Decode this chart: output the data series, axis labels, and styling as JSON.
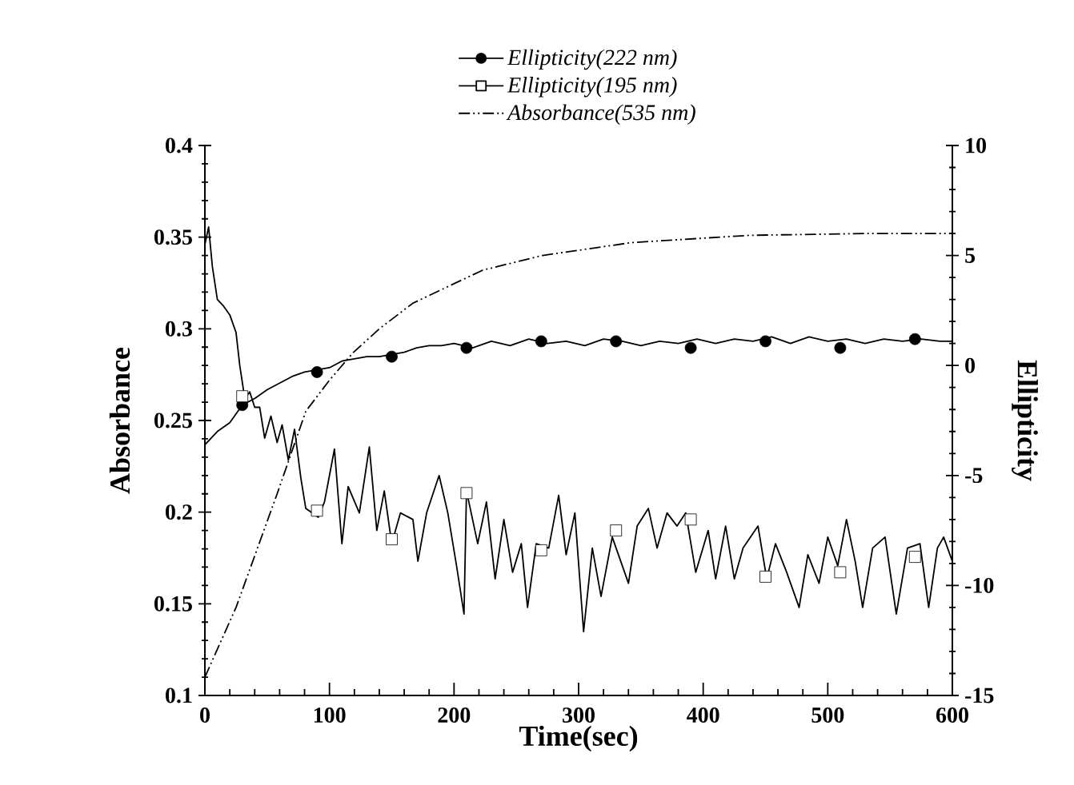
{
  "chart_data": {
    "type": "line",
    "xlabel": "Time(sec)",
    "ylabel": "Absorbance",
    "y2label": "Ellipticity",
    "xlim": [
      0,
      600
    ],
    "xticks": [
      0,
      100,
      200,
      300,
      400,
      500,
      600
    ],
    "ylim": [
      0.1,
      0.4
    ],
    "yticks": [
      0.1,
      0.15,
      0.2,
      0.25,
      0.3,
      0.35,
      0.4
    ],
    "y2lim": [
      -15,
      10
    ],
    "y2ticks": [
      -15,
      -10,
      -5,
      0,
      5,
      10
    ],
    "grid": false,
    "legend": "top",
    "series": [
      {
        "name": "Ellipticity(222 nm)",
        "axis": "y2",
        "color": "#000000",
        "line_style": "solid",
        "x": [
          0,
          5,
          10,
          15,
          20,
          25,
          30,
          40,
          50,
          60,
          70,
          80,
          90,
          100,
          110,
          120,
          130,
          140,
          150,
          160,
          170,
          180,
          190,
          200,
          215,
          230,
          245,
          260,
          275,
          290,
          305,
          320,
          335,
          350,
          365,
          380,
          395,
          410,
          425,
          440,
          455,
          470,
          485,
          500,
          515,
          530,
          545,
          560,
          575,
          590,
          600
        ],
        "values": [
          -3.6,
          -3.3,
          -3.0,
          -2.8,
          -2.6,
          -2.2,
          -1.8,
          -1.5,
          -1.1,
          -0.8,
          -0.5,
          -0.3,
          -0.2,
          -0.1,
          0.2,
          0.3,
          0.4,
          0.4,
          0.5,
          0.6,
          0.8,
          0.9,
          0.9,
          1.0,
          0.8,
          1.1,
          0.9,
          1.2,
          1.0,
          1.1,
          0.9,
          1.2,
          1.1,
          0.9,
          1.1,
          1.0,
          1.2,
          1.0,
          1.2,
          1.1,
          1.3,
          1.0,
          1.3,
          1.1,
          1.2,
          1.0,
          1.2,
          1.1,
          1.2,
          1.1,
          1.1
        ]
      },
      {
        "type": "scatter",
        "axis": "y2",
        "color": "#000000",
        "marker": "circle",
        "x": [
          30,
          90,
          150,
          210,
          270,
          330,
          390,
          450,
          510,
          570
        ],
        "values": [
          -1.8,
          -0.3,
          0.4,
          0.8,
          1.1,
          1.1,
          0.8,
          1.1,
          0.8,
          1.2
        ]
      },
      {
        "name": "Ellipticity(195 nm)",
        "axis": "y2",
        "color": "#000000",
        "line_style": "solid",
        "x": [
          0,
          3,
          6,
          10,
          15,
          20,
          25,
          28,
          32,
          36,
          40,
          44,
          48,
          53,
          58,
          62,
          67,
          72,
          77,
          81,
          91,
          96,
          104,
          110,
          115,
          124,
          132,
          138,
          144,
          150,
          157,
          167,
          171,
          178,
          188,
          195,
          202,
          208,
          210,
          219,
          226,
          233,
          240,
          247,
          254,
          259,
          266,
          276,
          284,
          290,
          297,
          304,
          311,
          318,
          327,
          340,
          347,
          356,
          363,
          371,
          379,
          386,
          394,
          404,
          410,
          418,
          425,
          432,
          444,
          451,
          458,
          467,
          477,
          484,
          493,
          500,
          508,
          515,
          522,
          528,
          536,
          546,
          555,
          564,
          574,
          581,
          588,
          593,
          600
        ],
        "values": [
          5.5,
          6.3,
          4.5,
          3.0,
          2.7,
          2.3,
          1.5,
          0.0,
          -1.5,
          -1.2,
          -1.9,
          -1.9,
          -3.3,
          -2.3,
          -3.5,
          -2.7,
          -4.3,
          -2.9,
          -5.1,
          -6.5,
          -6.9,
          -6.2,
          -3.8,
          -8.1,
          -5.5,
          -6.7,
          -3.7,
          -7.5,
          -5.7,
          -8.1,
          -6.7,
          -7.0,
          -8.9,
          -6.7,
          -5.0,
          -6.7,
          -9.1,
          -11.3,
          -5.7,
          -8.1,
          -6.2,
          -9.7,
          -7.0,
          -9.4,
          -8.1,
          -11.0,
          -8.1,
          -8.3,
          -5.9,
          -8.6,
          -6.7,
          -12.1,
          -8.3,
          -10.5,
          -7.8,
          -9.9,
          -7.3,
          -6.5,
          -8.3,
          -6.7,
          -7.3,
          -6.7,
          -9.4,
          -7.5,
          -9.7,
          -7.3,
          -9.7,
          -8.3,
          -7.3,
          -9.7,
          -8.1,
          -9.4,
          -11.0,
          -8.6,
          -9.9,
          -7.8,
          -9.1,
          -7.0,
          -8.9,
          -11.0,
          -8.3,
          -7.8,
          -11.3,
          -8.3,
          -8.1,
          -11.0,
          -8.3,
          -7.8,
          -8.9
        ]
      },
      {
        "type": "scatter",
        "axis": "y2",
        "color": "#000000",
        "marker": "square",
        "x": [
          30,
          90,
          150,
          210,
          270,
          330,
          390,
          450,
          510,
          570
        ],
        "values": [
          -1.4,
          -6.6,
          -7.9,
          -5.8,
          -8.4,
          -7.5,
          -7.0,
          -9.6,
          -9.4,
          -8.7
        ]
      },
      {
        "name": "Absorbance(535 nm)",
        "axis": "y",
        "color": "#000000",
        "line_style": "dashed",
        "x": [
          0,
          25,
          58,
          81,
          100,
          119,
          140,
          167,
          223,
          271,
          342,
          437,
          531,
          583,
          600
        ],
        "values": [
          0.11,
          0.148,
          0.21,
          0.255,
          0.272,
          0.287,
          0.3,
          0.314,
          0.332,
          0.34,
          0.347,
          0.351,
          0.352,
          0.352,
          0.352
        ]
      }
    ]
  }
}
